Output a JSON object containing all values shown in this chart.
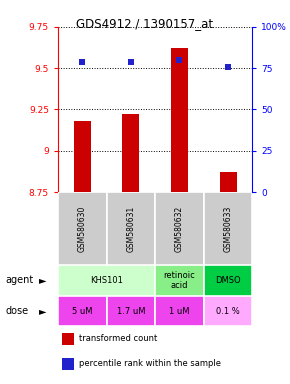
{
  "title": "GDS4912 / 1390157_at",
  "samples": [
    "GSM580630",
    "GSM580631",
    "GSM580632",
    "GSM580633"
  ],
  "bar_values": [
    9.18,
    9.22,
    9.62,
    8.87
  ],
  "percentile_values": [
    79,
    79,
    80,
    76
  ],
  "ylim_left": [
    8.75,
    9.75
  ],
  "ylim_right": [
    0,
    100
  ],
  "yticks_left": [
    8.75,
    9.0,
    9.25,
    9.5,
    9.75
  ],
  "yticks_right": [
    0,
    25,
    50,
    75,
    100
  ],
  "ytick_labels_left": [
    "8.75",
    "9",
    "9.25",
    "9.5",
    "9.75"
  ],
  "ytick_labels_right": [
    "0",
    "25",
    "50",
    "75",
    "100%"
  ],
  "bar_color": "#cc0000",
  "dot_color": "#2222cc",
  "bar_bottom": 8.75,
  "agent_groups": [
    {
      "start": 0,
      "end": 1,
      "label": "KHS101",
      "color": "#ccffcc"
    },
    {
      "start": 2,
      "end": 2,
      "label": "retinoic\nacid",
      "color": "#88ee88"
    },
    {
      "start": 3,
      "end": 3,
      "label": "DMSO",
      "color": "#00cc44"
    }
  ],
  "doses": [
    "5 uM",
    "1.7 uM",
    "1 uM",
    "0.1 %"
  ],
  "dose_colors": [
    "#ee44ee",
    "#ee44ee",
    "#ee44ee",
    "#ffaaff"
  ],
  "sample_bg": "#cccccc",
  "grid_color": "#555555"
}
